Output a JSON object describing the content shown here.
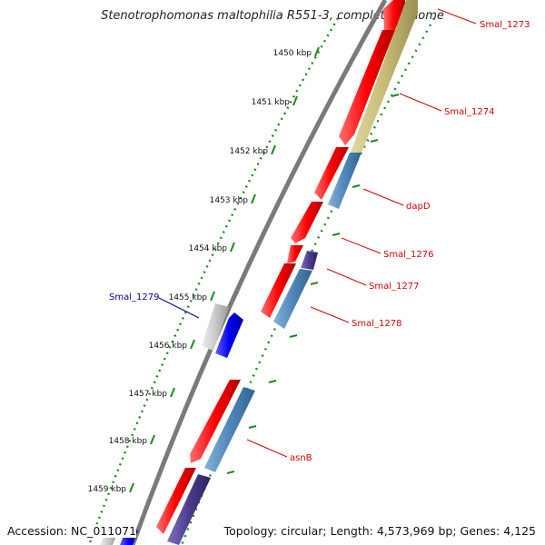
{
  "title": "Stenotrophomonas maltophilia R551-3, complete genome",
  "accession_label": "Accession: NC_011071",
  "topology_label": "Topology: circular; Length: 4,573,969 bp; Genes: 4,125",
  "colors": {
    "backbone": "#7a7a7a",
    "feature_red": "#ff0000",
    "feature_olive": "#c8bb74",
    "feature_steelblue": "#4f87ba",
    "feature_indigo": "#4b3c8c",
    "feature_blue": "#0000ee",
    "feature_grey": "#c9c9c9",
    "tick_green": "#1a8a1a",
    "label_red": "#d40000",
    "label_blue": "#00008b"
  },
  "ticks": [
    {
      "label": "1450 kbp"
    },
    {
      "label": "1451 kbp"
    },
    {
      "label": "1452 kbp"
    },
    {
      "label": "1453 kbp"
    },
    {
      "label": "1454 kbp"
    },
    {
      "label": "1455 kbp"
    },
    {
      "label": "1456 kbp"
    },
    {
      "label": "1457 kbp"
    },
    {
      "label": "1458 kbp"
    },
    {
      "label": "1459 kbp"
    }
  ],
  "gene_labels": [
    {
      "name": "Smal_1273",
      "color": "red"
    },
    {
      "name": "Smal_1274",
      "color": "red"
    },
    {
      "name": "dapD",
      "color": "red"
    },
    {
      "name": "Smal_1276",
      "color": "red"
    },
    {
      "name": "Smal_1277",
      "color": "red"
    },
    {
      "name": "Smal_1278",
      "color": "red"
    },
    {
      "name": "Smal_1279",
      "color": "blue"
    },
    {
      "name": "asnB",
      "color": "red"
    }
  ]
}
